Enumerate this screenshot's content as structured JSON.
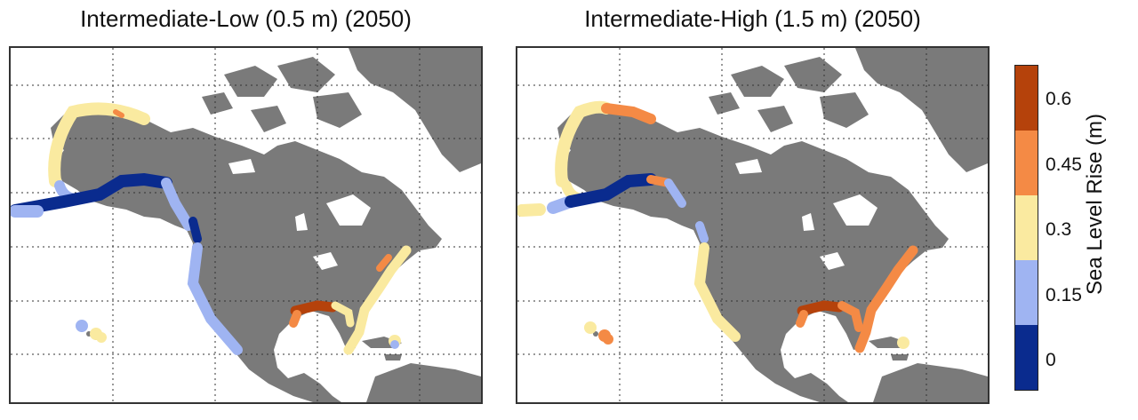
{
  "panels": [
    {
      "title": "Intermediate-Low (0.5 m) (2050)"
    },
    {
      "title": "Intermediate-High (1.5 m) (2050)"
    }
  ],
  "colorbar": {
    "label": "Sea Level Rise (m)",
    "ticks": [
      "0.6",
      "0.45",
      "0.3",
      "0.15",
      "0"
    ],
    "bins": [
      {
        "range": [
          -0.075,
          0.075
        ],
        "color": "#0a2b8e"
      },
      {
        "range": [
          0.075,
          0.225
        ],
        "color": "#9fb4f2"
      },
      {
        "range": [
          0.225,
          0.375
        ],
        "color": "#faeaa0"
      },
      {
        "range": [
          0.375,
          0.525
        ],
        "color": "#f48a45"
      },
      {
        "range": [
          0.525,
          0.675
        ],
        "color": "#b5420b"
      }
    ]
  },
  "colors": {
    "land": "#7a7a7a",
    "ocean": "#ffffff",
    "grid": "#333333"
  }
}
